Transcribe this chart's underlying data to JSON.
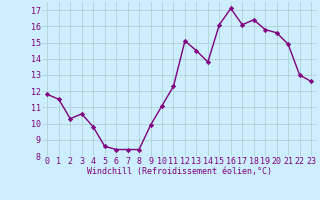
{
  "x": [
    0,
    1,
    2,
    3,
    4,
    5,
    6,
    7,
    8,
    9,
    10,
    11,
    12,
    13,
    14,
    15,
    16,
    17,
    18,
    19,
    20,
    21,
    22,
    23
  ],
  "y": [
    11.8,
    11.5,
    10.3,
    10.6,
    9.8,
    8.6,
    8.4,
    8.4,
    8.4,
    9.9,
    11.1,
    12.3,
    15.1,
    14.5,
    13.8,
    16.1,
    17.1,
    16.1,
    16.4,
    15.8,
    15.6,
    14.9,
    13.0,
    12.6
  ],
  "line_color": "#800080",
  "marker": "D",
  "marker_size": 2.2,
  "line_width": 1.0,
  "xlabel": "Windchill (Refroidissement éolien,°C)",
  "xlim": [
    -0.5,
    23.5
  ],
  "ylim": [
    8,
    17.5
  ],
  "yticks": [
    8,
    9,
    10,
    11,
    12,
    13,
    14,
    15,
    16,
    17
  ],
  "xticks": [
    0,
    1,
    2,
    3,
    4,
    5,
    6,
    7,
    8,
    9,
    10,
    11,
    12,
    13,
    14,
    15,
    16,
    17,
    18,
    19,
    20,
    21,
    22,
    23
  ],
  "bg_color": "#cceeff",
  "grid_color": "#aacccc",
  "tick_label_color": "#800080",
  "xlabel_color": "#800080",
  "xlabel_fontsize": 6.0,
  "tick_fontsize": 6.0,
  "ylabel_fontsize": 6.0
}
